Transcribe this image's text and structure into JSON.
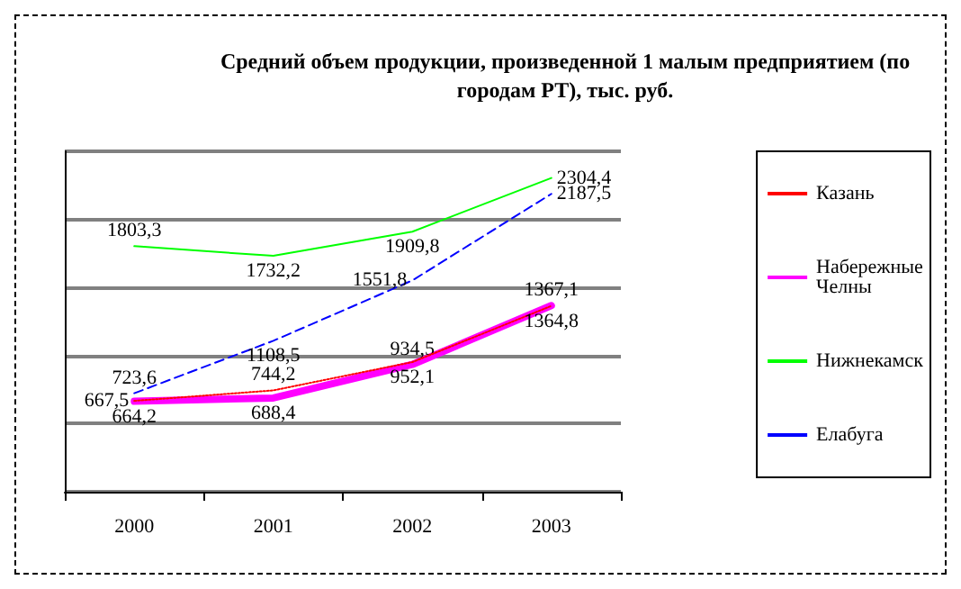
{
  "chart_data": {
    "type": "line",
    "title": "Средний объем продукции, произведенной 1 малым предприятием (по\nгородам РТ), тыс. руб.",
    "categories": [
      "2000",
      "2001",
      "2002",
      "2003"
    ],
    "series": [
      {
        "name": "Казань",
        "color": "#ff0000",
        "line_style": "dotted",
        "values": [
          667.5,
          744.2,
          952.1,
          1364.8
        ],
        "value_labels": [
          "667,5",
          "744,2",
          "952,1",
          "1364,8"
        ]
      },
      {
        "name": "Набережные Челны",
        "color": "#ff00ff",
        "values": [
          664.2,
          688.4,
          934.5,
          1367.1
        ],
        "value_labels": [
          "664,2",
          "688,4",
          "934,5",
          "1367,1"
        ]
      },
      {
        "name": "Нижнекамск",
        "color": "#00ff00",
        "values": [
          1803.3,
          1732.2,
          1909.8,
          2304.4
        ],
        "value_labels": [
          "1803,3",
          "1732,2",
          "1909,8",
          "2304,4"
        ]
      },
      {
        "name": "Елабуга",
        "color": "#0000ff",
        "line_style": "dashed",
        "values": [
          723.6,
          1108.5,
          1551.8,
          2187.5
        ],
        "value_labels": [
          "723,6",
          "1108,5",
          "1551,8",
          "2187,5"
        ]
      }
    ],
    "tick_labels": "x",
    "grid": "y",
    "legend": "right",
    "marker": "none"
  }
}
